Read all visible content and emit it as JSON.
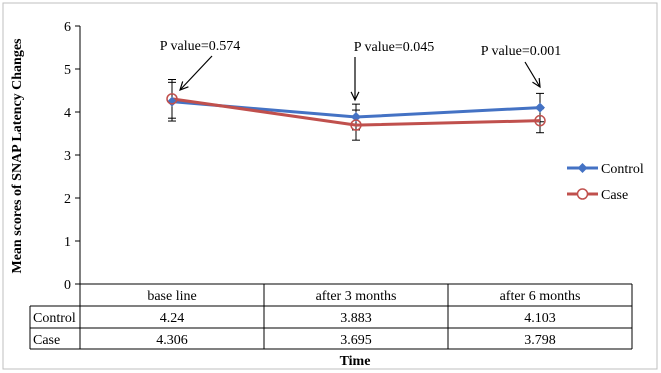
{
  "chart_data": {
    "type": "line",
    "title": "",
    "xlabel": "Time",
    "ylabel": "Mean scores of SNAP Latency Changes",
    "ylim": [
      0,
      6
    ],
    "yticks": [
      "0",
      "1",
      "2",
      "3",
      "4",
      "5",
      "6"
    ],
    "grid": false,
    "legend_position": "right",
    "categories": [
      "base line",
      "after 3 months",
      "after 6 months"
    ],
    "series": [
      {
        "name": "Control",
        "color": "#4472c4",
        "marker": "diamond",
        "values": [
          4.24,
          3.883,
          4.103
        ],
        "value_labels": [
          "4.24",
          "3.883",
          "4.103"
        ],
        "errors": [
          0.45,
          0.3,
          0.33
        ]
      },
      {
        "name": "Case",
        "color": "#c0504d",
        "marker": "circle",
        "values": [
          4.306,
          3.695,
          3.798
        ],
        "value_labels": [
          "4.306",
          "3.695",
          "3.798"
        ],
        "errors": [
          0.45,
          0.35,
          0.28
        ]
      }
    ],
    "annotations": [
      {
        "text": "P value=0.574",
        "category_index": 0
      },
      {
        "text": "P value=0.045",
        "category_index": 1
      },
      {
        "text": "P value=0.001",
        "category_index": 2
      }
    ],
    "data_table": true
  }
}
